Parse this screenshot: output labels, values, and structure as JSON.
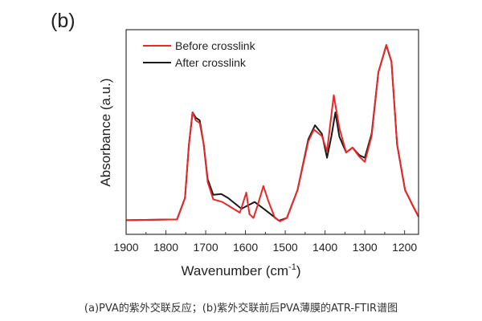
{
  "panel_label": "(b)",
  "caption": "(a)PVA的紫外交联反应；(b)紫外交联前后PVA薄膜的ATR-FTIR谱图",
  "chart_data": {
    "type": "line",
    "title": "",
    "xlabel": "Wavenumber (cm",
    "xlabel_sup": "-1",
    "xlabel_suffix": ")",
    "ylabel": "Absorbance (a.u.)",
    "xlim": [
      1900,
      1165
    ],
    "ylim": [
      0,
      1
    ],
    "x_reversed": true,
    "x_ticks": [
      1900,
      1800,
      1700,
      1600,
      1500,
      1400,
      1300,
      1200
    ],
    "x_tick_labels": [
      "1900",
      "1800",
      "1700",
      "1600",
      "1500",
      "1400",
      "1300",
      "1200"
    ],
    "grid": false,
    "legend_position": "top-left",
    "series": [
      {
        "name": "Before crosslink",
        "color": "#e8282a",
        "x": [
          1900,
          1772,
          1752,
          1742,
          1733,
          1725,
          1715,
          1705,
          1695,
          1681,
          1658,
          1614,
          1598,
          1590,
          1580,
          1570,
          1555,
          1543,
          1526,
          1513,
          1496,
          1469,
          1442,
          1428,
          1408,
          1395,
          1384,
          1378,
          1364,
          1347,
          1331,
          1314,
          1300,
          1283,
          1266,
          1246,
          1233,
          1219,
          1199,
          1179,
          1165
        ],
        "y": [
          0.069,
          0.073,
          0.178,
          0.439,
          0.596,
          0.557,
          0.544,
          0.439,
          0.256,
          0.171,
          0.158,
          0.106,
          0.204,
          0.099,
          0.08,
          0.138,
          0.236,
          0.165,
          0.08,
          0.064,
          0.08,
          0.217,
          0.455,
          0.512,
          0.48,
          0.406,
          0.583,
          0.68,
          0.52,
          0.4,
          0.424,
          0.38,
          0.354,
          0.48,
          0.792,
          0.926,
          0.844,
          0.439,
          0.217,
          0.138,
          0.086
        ]
      },
      {
        "name": "After crosslink",
        "color": "#1a1a1a",
        "x": [
          1900,
          1772,
          1752,
          1742,
          1733,
          1725,
          1715,
          1705,
          1695,
          1681,
          1661,
          1644,
          1610,
          1577,
          1550,
          1516,
          1496,
          1469,
          1442,
          1425,
          1408,
          1395,
          1384,
          1374,
          1364,
          1347,
          1331,
          1314,
          1300,
          1283,
          1266,
          1246,
          1233,
          1219,
          1199,
          1179,
          1165
        ],
        "y": [
          0.069,
          0.073,
          0.178,
          0.439,
          0.596,
          0.57,
          0.557,
          0.439,
          0.269,
          0.193,
          0.197,
          0.178,
          0.125,
          0.158,
          0.119,
          0.067,
          0.08,
          0.217,
          0.465,
          0.533,
          0.491,
          0.374,
          0.478,
          0.596,
          0.478,
          0.4,
          0.424,
          0.387,
          0.374,
          0.491,
          0.792,
          0.923,
          0.844,
          0.439,
          0.217,
          0.138,
          0.086
        ]
      }
    ]
  }
}
